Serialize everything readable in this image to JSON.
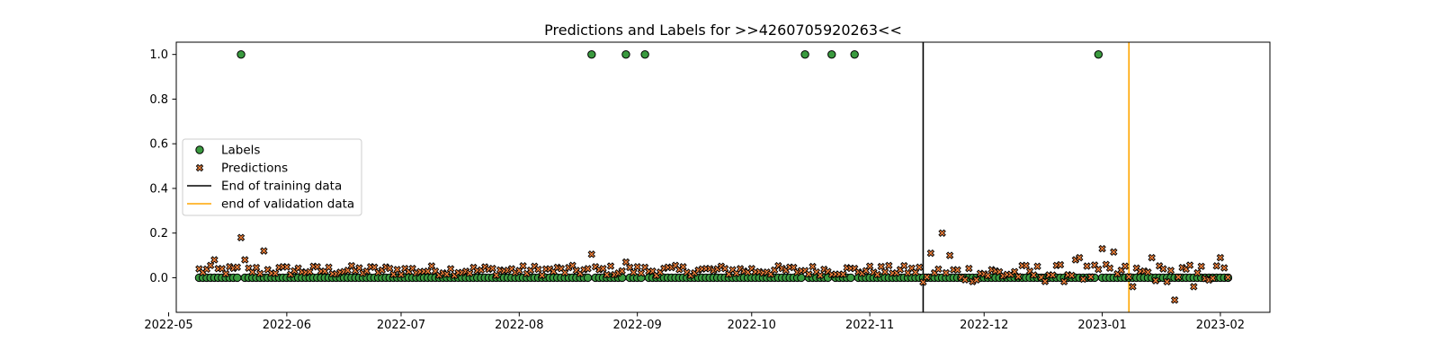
{
  "chart_data": {
    "type": "scatter",
    "title": "Predictions and Labels for >>4260705920263<<",
    "xlabel": "",
    "ylabel": "",
    "x_axis_type": "date",
    "xlim": [
      "2022-05-03",
      "2023-02-14"
    ],
    "ylim": [
      -0.155,
      1.055
    ],
    "grid": false,
    "legend_position": "center-left",
    "x_ticks": [
      "2022-05",
      "2022-06",
      "2022-07",
      "2022-08",
      "2022-09",
      "2022-10",
      "2022-11",
      "2022-12",
      "2023-01",
      "2023-02"
    ],
    "x_tick_dates": [
      "2022-05-01",
      "2022-06-01",
      "2022-07-01",
      "2022-08-01",
      "2022-09-01",
      "2022-10-01",
      "2022-11-01",
      "2022-12-01",
      "2023-01-01",
      "2023-02-01"
    ],
    "y_ticks": [
      "0.0",
      "0.2",
      "0.4",
      "0.6",
      "0.8",
      "1.0"
    ],
    "y_tick_values": [
      0.0,
      0.2,
      0.4,
      0.6,
      0.8,
      1.0
    ],
    "date_range": [
      "2022-05-09",
      "2023-02-03"
    ],
    "series": [
      {
        "name": "Labels",
        "marker": "circle",
        "color": "#3a9a3f",
        "edgecolor": "#000000",
        "baseline_value": 0.0,
        "points": [
          {
            "x": "2022-05-20",
            "y": 1.0
          },
          {
            "x": "2022-08-20",
            "y": 1.0
          },
          {
            "x": "2022-08-29",
            "y": 1.0
          },
          {
            "x": "2022-09-03",
            "y": 1.0
          },
          {
            "x": "2022-10-15",
            "y": 1.0
          },
          {
            "x": "2022-10-22",
            "y": 1.0
          },
          {
            "x": "2022-10-28",
            "y": 1.0
          },
          {
            "x": "2022-12-31",
            "y": 1.0
          }
        ]
      },
      {
        "name": "Predictions",
        "marker": "x-filled",
        "color": "#f0803a",
        "edgecolor": "#000000",
        "typical_range": [
          0.0,
          0.06
        ],
        "points": [
          {
            "x": "2022-05-20",
            "y": 0.18
          },
          {
            "x": "2022-05-26",
            "y": 0.12
          },
          {
            "x": "2022-05-13",
            "y": 0.08
          },
          {
            "x": "2022-05-21",
            "y": 0.08
          },
          {
            "x": "2022-08-20",
            "y": 0.105
          },
          {
            "x": "2022-08-29",
            "y": 0.07
          },
          {
            "x": "2022-11-17",
            "y": 0.11
          },
          {
            "x": "2022-11-20",
            "y": 0.2
          },
          {
            "x": "2022-11-22",
            "y": 0.1
          },
          {
            "x": "2022-12-26",
            "y": 0.09
          },
          {
            "x": "2022-12-25",
            "y": 0.08
          },
          {
            "x": "2023-01-01",
            "y": 0.13
          },
          {
            "x": "2023-01-04",
            "y": 0.115
          },
          {
            "x": "2023-01-14",
            "y": 0.09
          },
          {
            "x": "2023-02-01",
            "y": 0.09
          },
          {
            "x": "2023-01-20",
            "y": -0.1
          },
          {
            "x": "2023-01-25",
            "y": -0.04
          },
          {
            "x": "2023-01-09",
            "y": -0.04
          },
          {
            "x": "2022-11-15",
            "y": -0.02
          }
        ]
      }
    ],
    "vertical_lines": [
      {
        "name": "End of training data",
        "x": "2022-11-15",
        "color": "#000000"
      },
      {
        "name": "end of validation data",
        "x": "2023-01-08",
        "color": "#ffa500"
      }
    ]
  }
}
